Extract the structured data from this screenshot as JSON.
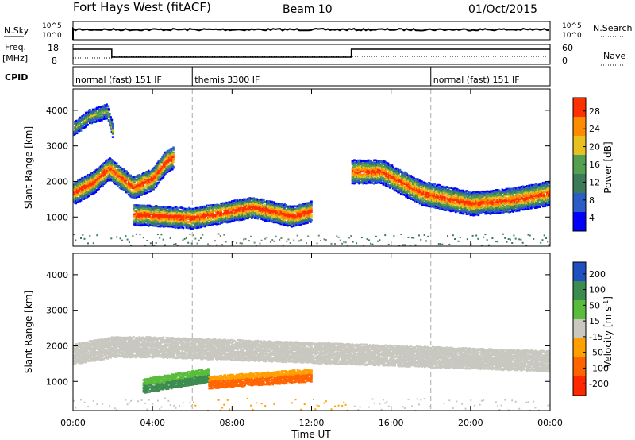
{
  "header": {
    "title": "Fort Hays West (fitACF)",
    "beam": "Beam 10",
    "date": "01/Oct/2015"
  },
  "status_panels": {
    "nsky_label": "N.Sky",
    "nsky_ticks": [
      "10^5",
      "10^0"
    ],
    "nsearch_label": "N.Search",
    "nsearch_ticks": [
      "10^5",
      "10^0"
    ],
    "freq_label": "Freq.",
    "freq_unit": "[MHz]",
    "freq_ticks": [
      "18",
      "8"
    ],
    "nave_label": "Nave",
    "nave_ticks": [
      "60",
      "0"
    ],
    "cpid_label": "CPID",
    "cpid_segments": [
      {
        "label": "normal (fast) 151 IF",
        "start": 0,
        "end": 6
      },
      {
        "label": "themis 3300 IF",
        "start": 6,
        "end": 18
      },
      {
        "label": "normal (fast) 151 IF",
        "start": 18,
        "end": 24
      }
    ]
  },
  "chart_data": [
    {
      "type": "heatmap",
      "panel": "power",
      "ylabel": "Slant Range [km]",
      "xlabel": "Time UT",
      "xlim": [
        0,
        24
      ],
      "ylim": [
        180,
        4600
      ],
      "xticks": [
        "00:00",
        "04:00",
        "08:00",
        "12:00",
        "16:00",
        "20:00",
        "00:00"
      ],
      "yticks": [
        1000,
        2000,
        3000,
        4000
      ],
      "mode_boundaries": [
        6,
        18
      ],
      "colorbar": {
        "label": "Power [dB]",
        "ticks": [
          "4",
          "8",
          "12",
          "16",
          "20",
          "24",
          "28"
        ],
        "colors": [
          "#0000ff",
          "#2c5cc8",
          "#3c7a5a",
          "#55a050",
          "#e8c020",
          "#ff8c00",
          "#ff3000"
        ]
      },
      "features": [
        {
          "name": "upper band",
          "x": [
            0.0,
            0.8,
            1.7,
            2.0
          ],
          "range": [
            3500,
            3850,
            4000,
            3350
          ]
        },
        {
          "name": "main band",
          "x": [
            0.0,
            1.0,
            1.8,
            3.0,
            4.0,
            4.6,
            5.0
          ],
          "range": [
            1700,
            2000,
            2400,
            1850,
            2100,
            2550,
            2700
          ],
          "power_db": 26
        },
        {
          "name": "themis echoes",
          "x": [
            3.0,
            6.0,
            9.0,
            11.0,
            12.0
          ],
          "range": [
            1100,
            1000,
            1300,
            1050,
            1200
          ],
          "power_db": 27
        },
        {
          "name": "ground scatter",
          "x": [
            14.0,
            15.5,
            17.5,
            20.0,
            22.0,
            24.0
          ],
          "range": [
            2300,
            2300,
            1700,
            1400,
            1500,
            1700
          ],
          "power_db": 25
        }
      ]
    },
    {
      "type": "heatmap",
      "panel": "velocity",
      "ylabel": "Slant Range [km]",
      "xlabel": "Time UT",
      "xlim": [
        0,
        24
      ],
      "ylim": [
        180,
        4600
      ],
      "xticks": [
        "00:00",
        "04:00",
        "08:00",
        "12:00",
        "16:00",
        "20:00",
        "00:00"
      ],
      "yticks": [
        1000,
        2000,
        3000,
        4000
      ],
      "colorbar": {
        "label": "Velocity [m s^-1]",
        "ticks": [
          "200",
          "100",
          "50",
          "15",
          "-15",
          "-50",
          "-100",
          "-200"
        ],
        "colors": [
          "#2050c0",
          "#3c8c50",
          "#5abc3c",
          "#c8c8c0",
          "#ffa000",
          "#ff6400",
          "#ff2800"
        ]
      },
      "features": [
        {
          "name": "ground scatter band",
          "x": [
            0.0,
            2.0,
            4.0,
            24.0
          ],
          "range": [
            1800,
            2000,
            2000,
            1600
          ],
          "velocity_ms": 0
        },
        {
          "name": "positive flow",
          "x": [
            3.5,
            6.8
          ],
          "range": [
            900,
            1200
          ],
          "velocity_ms": 60
        },
        {
          "name": "negative flow",
          "x": [
            6.8,
            12.0
          ],
          "range": [
            1000,
            1200
          ],
          "velocity_ms": -60
        }
      ]
    }
  ]
}
